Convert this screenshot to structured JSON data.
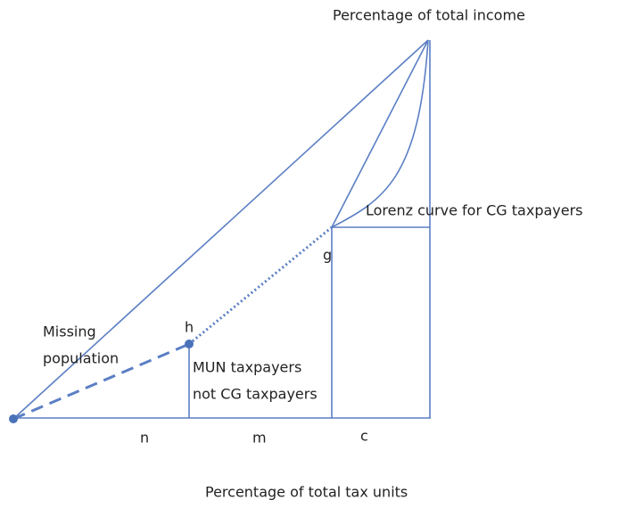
{
  "labels": {
    "y_axis": "Percentage of total income",
    "x_axis": "Percentage of total tax units",
    "lorenz_curve": "Lorenz curve for CG taxpayers",
    "point_g": "g",
    "point_h": "h",
    "missing_population": [
      "Missing",
      "population"
    ],
    "mun_taxpayers": [
      "MUN taxpayers",
      "not CG taxpayers"
    ],
    "segment_n": "n",
    "segment_m": "m",
    "segment_c": "c"
  }
}
